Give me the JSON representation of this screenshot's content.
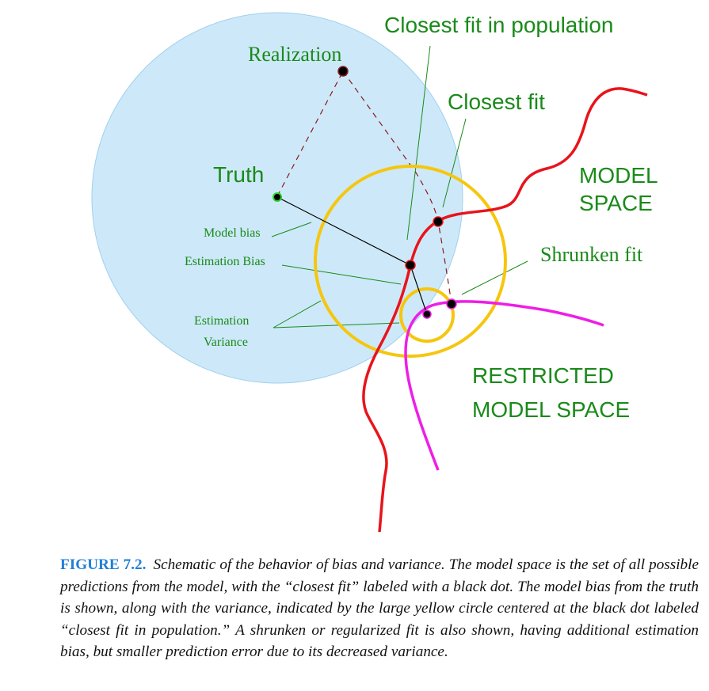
{
  "labels": {
    "closest_fit_population": "Closest fit in population",
    "realization": "Realization",
    "closest_fit": "Closest fit",
    "truth": "Truth",
    "model_space_line1": "MODEL",
    "model_space_line2": "SPACE",
    "model_bias": "Model bias",
    "estimation_bias": "Estimation Bias",
    "shrunken_fit": "Shrunken fit",
    "estimation_variance_line1": "Estimation",
    "estimation_variance_line2": "Variance",
    "restricted_line1": "RESTRICTED",
    "restricted_line2": "MODEL SPACE"
  },
  "colors": {
    "realization_disk": "#cde9f9",
    "model_space_curve": "#e8141b",
    "restricted_curve": "#ee1ee6",
    "variance_circle": "#f6c60f",
    "label_green": "#1a8a1a",
    "dashed_path": "#8b1a1a",
    "figure_number": "#1f7fd6"
  },
  "caption": {
    "figure_number": "FIGURE 7.2.",
    "text": "Schematic of the behavior of bias and variance. The model space is the set of all possible predictions from the model, with the “closest fit” labeled with a black dot. The model bias from the truth is shown, along with the variance, indicated by the large yellow circle centered at the black dot labeled “closest fit in population.” A shrunken or regularized fit is also shown, having additional estimation bias, but smaller prediction error due to its decreased variance."
  }
}
